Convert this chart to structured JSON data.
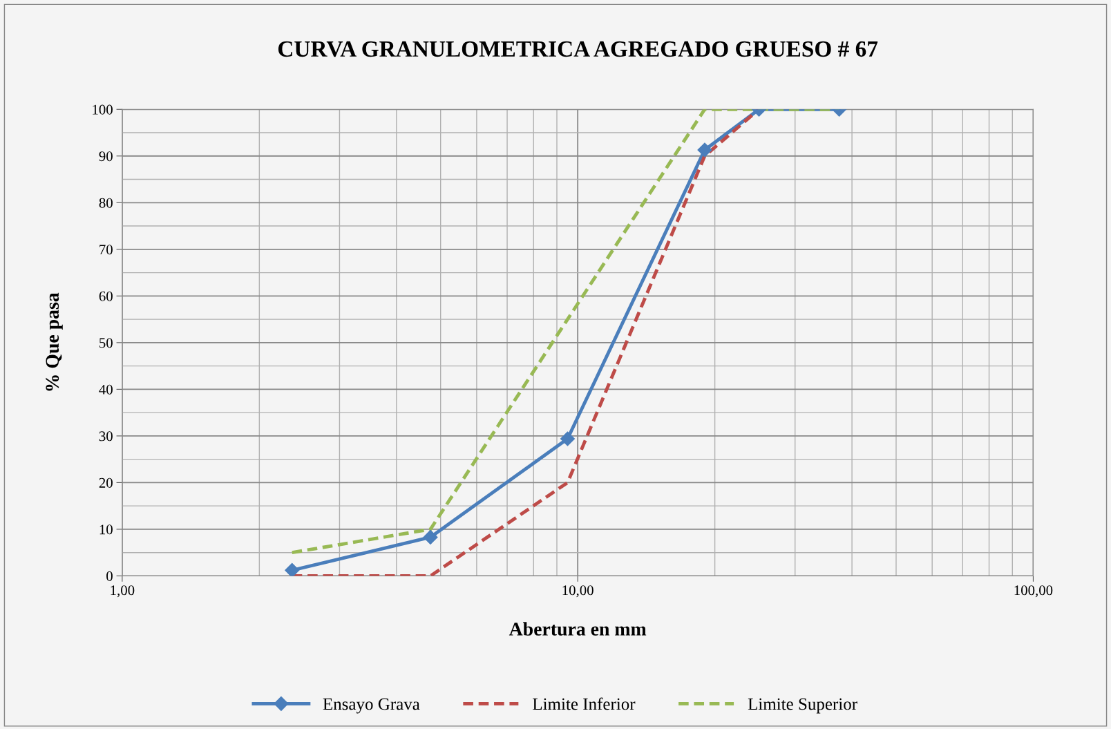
{
  "chart_data": {
    "type": "line",
    "title": "CURVA GRANULOMETRICA AGREGADO GRUESO # 67",
    "xlabel": "Abertura en mm",
    "ylabel": "% Que pasa",
    "x": [
      2.36,
      4.75,
      9.5,
      19,
      25,
      37.5
    ],
    "series": [
      {
        "name": "Ensayo Grava",
        "color": "#4a7ebb",
        "values": [
          1.2,
          8.3,
          29.4,
          91.3,
          100,
          100
        ],
        "marker": "diamond",
        "line_style": "solid"
      },
      {
        "name": "Limite Inferior",
        "color": "#be4b48",
        "values": [
          0,
          0,
          20,
          90,
          100,
          null
        ],
        "marker": "none",
        "line_style": "dashed"
      },
      {
        "name": "Limite Superior",
        "color": "#98b954",
        "values": [
          5,
          10,
          55,
          100,
          100,
          100
        ],
        "marker": "none",
        "line_style": "dashed"
      }
    ],
    "log": "x",
    "xlim": [
      1,
      100
    ],
    "xticks": [
      {
        "value": 1,
        "label": "1,00"
      },
      {
        "value": 10,
        "label": "10,00"
      },
      {
        "value": 100,
        "label": "100,00"
      }
    ],
    "ylim": [
      0,
      100
    ],
    "yticks": [
      0,
      10,
      20,
      30,
      40,
      50,
      60,
      70,
      80,
      90,
      100
    ],
    "grid": true,
    "legend": "bottom"
  }
}
